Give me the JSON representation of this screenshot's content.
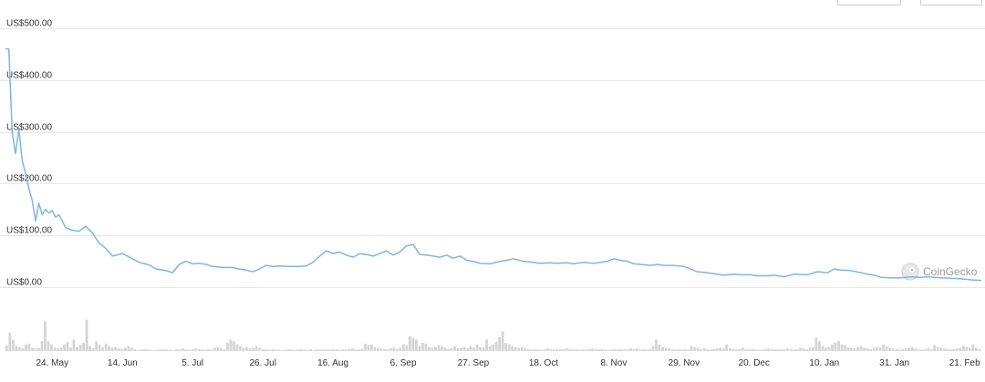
{
  "chart_data": {
    "type": "line",
    "y_tick_labels": [
      "US$500.00",
      "US$400.00",
      "US$300.00",
      "US$200.00",
      "US$100.00",
      "US$0.00"
    ],
    "y_ticks": [
      500,
      400,
      300,
      200,
      100,
      0
    ],
    "ylim": [
      0,
      500
    ],
    "x_tick_labels": [
      "24. May",
      "14. Jun",
      "5. Jul",
      "26. Jul",
      "16. Aug",
      "6. Sep",
      "27. Sep",
      "18. Oct",
      "8. Nov",
      "29. Nov",
      "20. Dec",
      "10. Jan",
      "31. Jan",
      "21. Feb"
    ],
    "x_tick_days": [
      14,
      35,
      56,
      77,
      98,
      119,
      140,
      161,
      182,
      203,
      224,
      245,
      266,
      287
    ],
    "x_range_days": [
      0,
      292
    ],
    "grid": true,
    "line_color": "#7fb6e0",
    "volume_color": "#d4d4d4",
    "price_series": [
      [
        0,
        460
      ],
      [
        1,
        460
      ],
      [
        2,
        300
      ],
      [
        3,
        258
      ],
      [
        4,
        305
      ],
      [
        5,
        245
      ],
      [
        6,
        220
      ],
      [
        7,
        190
      ],
      [
        8,
        168
      ],
      [
        9,
        128
      ],
      [
        10,
        162
      ],
      [
        11,
        140
      ],
      [
        12,
        150
      ],
      [
        13,
        143
      ],
      [
        14,
        148
      ],
      [
        15,
        135
      ],
      [
        16,
        140
      ],
      [
        17,
        128
      ],
      [
        18,
        115
      ],
      [
        20,
        110
      ],
      [
        22,
        108
      ],
      [
        24,
        118
      ],
      [
        26,
        105
      ],
      [
        28,
        85
      ],
      [
        30,
        75
      ],
      [
        32,
        60
      ],
      [
        35,
        65
      ],
      [
        38,
        55
      ],
      [
        40,
        48
      ],
      [
        43,
        43
      ],
      [
        45,
        35
      ],
      [
        48,
        32
      ],
      [
        50,
        28
      ],
      [
        52,
        44
      ],
      [
        54,
        50
      ],
      [
        56,
        45
      ],
      [
        58,
        46
      ],
      [
        60,
        44
      ],
      [
        62,
        40
      ],
      [
        65,
        38
      ],
      [
        68,
        38
      ],
      [
        70,
        35
      ],
      [
        72,
        33
      ],
      [
        74,
        30
      ],
      [
        76,
        35
      ],
      [
        78,
        42
      ],
      [
        80,
        40
      ],
      [
        82,
        41
      ],
      [
        85,
        40
      ],
      [
        88,
        40
      ],
      [
        90,
        41
      ],
      [
        92,
        48
      ],
      [
        94,
        60
      ],
      [
        96,
        70
      ],
      [
        98,
        65
      ],
      [
        100,
        68
      ],
      [
        102,
        62
      ],
      [
        104,
        58
      ],
      [
        106,
        65
      ],
      [
        108,
        63
      ],
      [
        110,
        60
      ],
      [
        112,
        65
      ],
      [
        114,
        70
      ],
      [
        116,
        62
      ],
      [
        118,
        68
      ],
      [
        120,
        80
      ],
      [
        122,
        82
      ],
      [
        124,
        63
      ],
      [
        126,
        62
      ],
      [
        128,
        60
      ],
      [
        130,
        58
      ],
      [
        132,
        62
      ],
      [
        134,
        56
      ],
      [
        136,
        60
      ],
      [
        138,
        52
      ],
      [
        140,
        50
      ],
      [
        142,
        46
      ],
      [
        145,
        45
      ],
      [
        148,
        50
      ],
      [
        150,
        52
      ],
      [
        152,
        55
      ],
      [
        155,
        50
      ],
      [
        158,
        48
      ],
      [
        160,
        46
      ],
      [
        163,
        47
      ],
      [
        165,
        46
      ],
      [
        168,
        47
      ],
      [
        170,
        45
      ],
      [
        173,
        48
      ],
      [
        176,
        46
      ],
      [
        178,
        48
      ],
      [
        180,
        50
      ],
      [
        182,
        55
      ],
      [
        184,
        52
      ],
      [
        186,
        50
      ],
      [
        188,
        45
      ],
      [
        190,
        44
      ],
      [
        193,
        42
      ],
      [
        195,
        44
      ],
      [
        197,
        42
      ],
      [
        200,
        42
      ],
      [
        203,
        40
      ],
      [
        205,
        35
      ],
      [
        207,
        30
      ],
      [
        210,
        28
      ],
      [
        213,
        25
      ],
      [
        215,
        23
      ],
      [
        218,
        25
      ],
      [
        220,
        24
      ],
      [
        223,
        24
      ],
      [
        225,
        22
      ],
      [
        228,
        22
      ],
      [
        230,
        23
      ],
      [
        233,
        20
      ],
      [
        236,
        25
      ],
      [
        240,
        24
      ],
      [
        243,
        30
      ],
      [
        246,
        28
      ],
      [
        248,
        35
      ],
      [
        250,
        33
      ],
      [
        253,
        32
      ],
      [
        256,
        28
      ],
      [
        258,
        25
      ],
      [
        260,
        23
      ],
      [
        262,
        19
      ],
      [
        265,
        18
      ],
      [
        268,
        18
      ],
      [
        271,
        20
      ],
      [
        274,
        19
      ],
      [
        276,
        20
      ],
      [
        278,
        19
      ],
      [
        280,
        18
      ],
      [
        283,
        17
      ],
      [
        286,
        16
      ],
      [
        289,
        14
      ],
      [
        292,
        13
      ]
    ],
    "volume_series": [
      0.18,
      0.55,
      0.35,
      0.16,
      0.12,
      0.08,
      0.2,
      0.22,
      0.1,
      0.08,
      0.1,
      0.3,
      0.9,
      0.3,
      0.2,
      0.1,
      0.08,
      0.1,
      0.2,
      0.28,
      0.1,
      0.35,
      0.12,
      0.2,
      0.25,
      0.95,
      0.15,
      0.08,
      0.3,
      0.18,
      0.12,
      0.22,
      0.15,
      0.1,
      0.12,
      0.08,
      0.06,
      0.1,
      0.15,
      0.1,
      0.05,
      0.04,
      0.05,
      0.06,
      0.05,
      0.04,
      0.03,
      0.04,
      0.05,
      0.06,
      0.05,
      0.04,
      0.03,
      0.05,
      0.06,
      0.08,
      0.05,
      0.04,
      0.05,
      0.08,
      0.06,
      0.05,
      0.04,
      0.06,
      0.05,
      0.1,
      0.12,
      0.08,
      0.05,
      0.25,
      0.35,
      0.3,
      0.2,
      0.15,
      0.1,
      0.12,
      0.08,
      0.1,
      0.15,
      0.1,
      0.05,
      0.05,
      0.04,
      0.05,
      0.05,
      0.04,
      0.03,
      0.04,
      0.05,
      0.05,
      0.04,
      0.05,
      0.06,
      0.05,
      0.04,
      0.05,
      0.04,
      0.05,
      0.05,
      0.06,
      0.05,
      0.05,
      0.06,
      0.05,
      0.04,
      0.05,
      0.05,
      0.06,
      0.08,
      0.06,
      0.05,
      0.07,
      0.22,
      0.18,
      0.2,
      0.12,
      0.1,
      0.08,
      0.06,
      0.05,
      0.08,
      0.1,
      0.06,
      0.1,
      0.2,
      0.18,
      0.45,
      0.4,
      0.35,
      0.15,
      0.25,
      0.22,
      0.12,
      0.1,
      0.12,
      0.18,
      0.15,
      0.1,
      0.06,
      0.08,
      0.15,
      0.08,
      0.1,
      0.12,
      0.08,
      0.15,
      0.1,
      0.2,
      0.12,
      0.1,
      0.35,
      0.15,
      0.2,
      0.28,
      0.42,
      0.6,
      0.25,
      0.2,
      0.15,
      0.12,
      0.1,
      0.12,
      0.08,
      0.06,
      0.05,
      0.06,
      0.05,
      0.04,
      0.05,
      0.08,
      0.06,
      0.05,
      0.06,
      0.05,
      0.06,
      0.08,
      0.06,
      0.05,
      0.06,
      0.05,
      0.06,
      0.05,
      0.06,
      0.08,
      0.06,
      0.05,
      0.06,
      0.05,
      0.04,
      0.05,
      0.06,
      0.05,
      0.06,
      0.05,
      0.06,
      0.08,
      0.06,
      0.08,
      0.05,
      0.06,
      0.05,
      0.06,
      0.15,
      0.35,
      0.2,
      0.12,
      0.1,
      0.08,
      0.06,
      0.05,
      0.06,
      0.05,
      0.06,
      0.05,
      0.15,
      0.12,
      0.1,
      0.05,
      0.08,
      0.06,
      0.05,
      0.06,
      0.08,
      0.1,
      0.08,
      0.2,
      0.08,
      0.06,
      0.05,
      0.06,
      0.1,
      0.06,
      0.05,
      0.06,
      0.05,
      0.04,
      0.05,
      0.06,
      0.08,
      0.06,
      0.05,
      0.06,
      0.05,
      0.06,
      0.08,
      0.06,
      0.05,
      0.06,
      0.1,
      0.08,
      0.06,
      0.1,
      0.12,
      0.4,
      0.3,
      0.15,
      0.1,
      0.12,
      0.2,
      0.25,
      0.3,
      0.2,
      0.18,
      0.12,
      0.1,
      0.08,
      0.12,
      0.15,
      0.1,
      0.08,
      0.06,
      0.1,
      0.12,
      0.1,
      0.2,
      0.15,
      0.1,
      0.08,
      0.06,
      0.05,
      0.06,
      0.08,
      0.1,
      0.12,
      0.08,
      0.06,
      0.05,
      0.06,
      0.08,
      0.06,
      0.18,
      0.12,
      0.1,
      0.08,
      0.06,
      0.05,
      0.06,
      0.08,
      0.1,
      0.15,
      0.12,
      0.1,
      0.2,
      0.1,
      0.06
    ]
  },
  "watermark": {
    "text": "CoinGecko",
    "icon": "coingecko-logo-icon"
  }
}
